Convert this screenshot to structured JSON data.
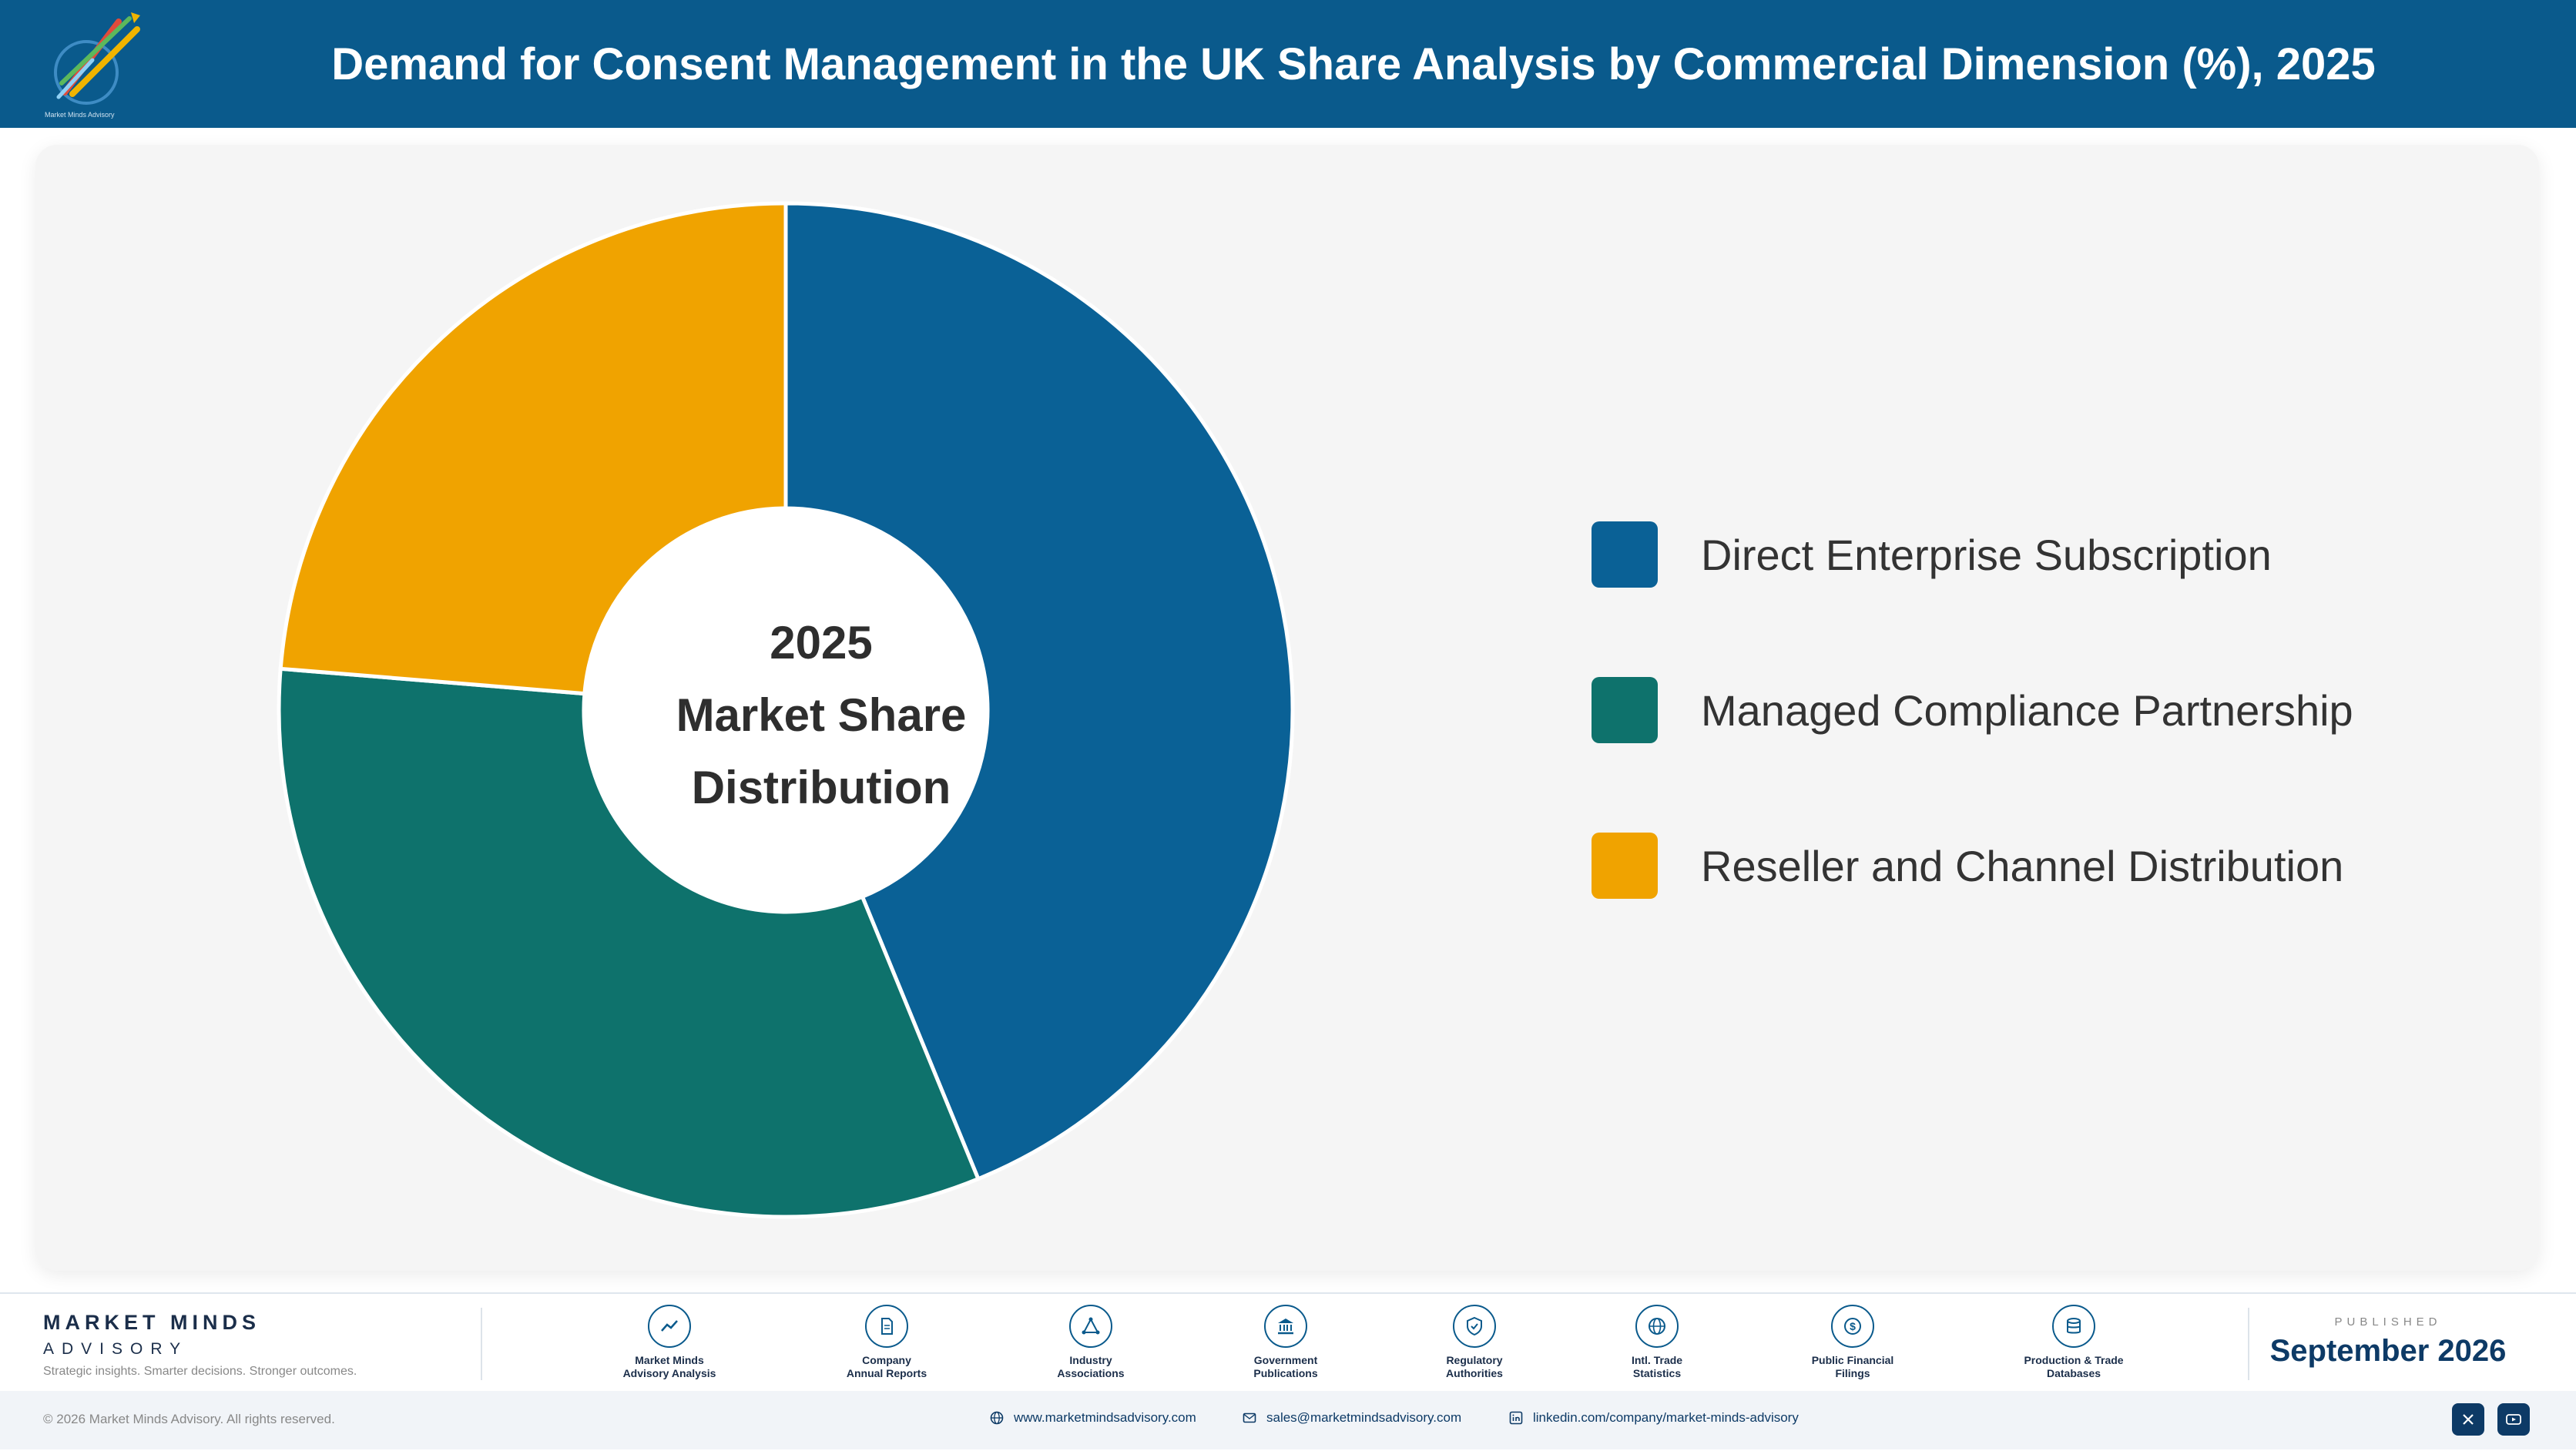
{
  "header": {
    "title": "Demand for Consent Management in the UK Share Analysis by Commercial Dimension (%), 2025",
    "logo_text": "Market Minds Advisory"
  },
  "chart_data": {
    "type": "pie",
    "variant": "donut",
    "title": "Demand for Consent Management in the UK Share Analysis by Commercial Dimension (%), 2025",
    "center_label": [
      "2025",
      "Market Share",
      "Distribution"
    ],
    "categories": [
      "Direct Enterprise Subscription",
      "Managed Compliance Partnership",
      "Reseller and Channel Distribution"
    ],
    "values": [
      43.8,
      32.5,
      23.7
    ],
    "colors": [
      "#0a6196",
      "#0e726c",
      "#f0a300"
    ],
    "start_angle": "12 o'clock, clockwise",
    "legend_position": "right"
  },
  "footer": {
    "brand_name": "MARKET MINDS",
    "brand_sub": "ADVISORY",
    "tagline": "Strategic insights. Smarter decisions. Stronger outcomes.",
    "sources": [
      {
        "icon": "trend-line-icon",
        "line1": "Market Minds",
        "line2": "Advisory Analysis"
      },
      {
        "icon": "document-icon",
        "line1": "Company",
        "line2": "Annual Reports"
      },
      {
        "icon": "network-icon",
        "line1": "Industry",
        "line2": "Associations"
      },
      {
        "icon": "government-building-icon",
        "line1": "Government",
        "line2": "Publications"
      },
      {
        "icon": "shield-check-icon",
        "line1": "Regulatory",
        "line2": "Authorities"
      },
      {
        "icon": "globe-icon",
        "line1": "Intl. Trade",
        "line2": "Statistics"
      },
      {
        "icon": "dollar-coin-icon",
        "line1": "Public Financial",
        "line2": "Filings"
      },
      {
        "icon": "database-icon",
        "line1": "Production & Trade",
        "line2": "Databases"
      }
    ],
    "published_label": "PUBLISHED",
    "published_date": "September 2026",
    "copyright": "© 2026 Market Minds Advisory. All rights reserved.",
    "website": "www.marketmindsadvisory.com",
    "email": "sales@marketmindsadvisory.com",
    "linkedin": "linkedin.com/company/market-minds-advisory",
    "accent_color": "#0a5a8c"
  }
}
